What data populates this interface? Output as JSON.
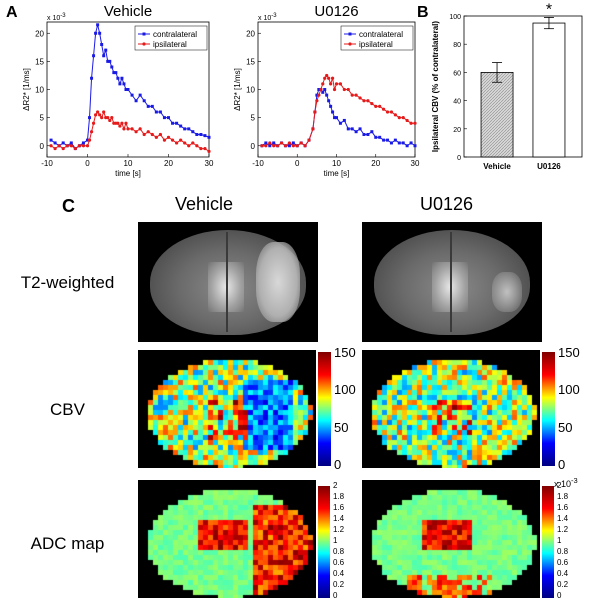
{
  "panel_labels": {
    "a": "A",
    "b": "B",
    "c": "C"
  },
  "chart_data": [
    {
      "type": "line",
      "title": "Vehicle",
      "xlabel": "time [s]",
      "ylabel": "ΔR2* [1/ms]",
      "exponent": "x 10",
      "exponent_power": "-3",
      "xlim": [
        -10,
        30
      ],
      "ylim": [
        -2,
        22
      ],
      "xticks": [
        "-10",
        "0",
        "10",
        "20",
        "30"
      ],
      "yticks": [
        "0",
        "5",
        "10",
        "15",
        "20"
      ],
      "series": [
        {
          "name": "contralateral",
          "color": "#1a1ae6",
          "x": [
            -9,
            -8,
            -7,
            -6,
            -5,
            -4,
            -3,
            -2,
            -1,
            0,
            0.5,
            1,
            1.5,
            2,
            2.5,
            3,
            3.5,
            4,
            4.5,
            5,
            5.5,
            6,
            6.5,
            7,
            7.5,
            8,
            8.5,
            9,
            9.5,
            10,
            11,
            12,
            13,
            14,
            15,
            16,
            17,
            18,
            19,
            20,
            21,
            22,
            23,
            24,
            25,
            26,
            27,
            28,
            29,
            30
          ],
          "y": [
            1,
            0.5,
            0,
            0.5,
            0,
            0.5,
            -0.5,
            0,
            0.5,
            1,
            5,
            12,
            16,
            20,
            21.5,
            20,
            18,
            16,
            17,
            15,
            15,
            14,
            13,
            13,
            12,
            11,
            12,
            11,
            10,
            10,
            9,
            8,
            9,
            8,
            7,
            7,
            6,
            6,
            5,
            5,
            4,
            4,
            3.5,
            3,
            3,
            2.5,
            2,
            2,
            1.8,
            1.5
          ]
        },
        {
          "name": "ipsilateral",
          "color": "#e61a1a",
          "x": [
            -9,
            -8,
            -7,
            -6,
            -5,
            -4,
            -3,
            -2,
            -1,
            0,
            0.5,
            1,
            1.5,
            2,
            2.5,
            3,
            3.5,
            4,
            4.5,
            5,
            5.5,
            6,
            6.5,
            7,
            7.5,
            8,
            8.5,
            9,
            9.5,
            10,
            11,
            12,
            13,
            14,
            15,
            16,
            17,
            18,
            19,
            20,
            21,
            22,
            23,
            24,
            25,
            26,
            27,
            28,
            29,
            30
          ],
          "y": [
            0,
            -0.5,
            0,
            -0.5,
            0,
            0,
            -0.5,
            0,
            0,
            0,
            1,
            2.5,
            4,
            5.5,
            6,
            5.5,
            5,
            6,
            5,
            5,
            4.5,
            5,
            4,
            4,
            4,
            3.5,
            4,
            3,
            4,
            3,
            3,
            2.5,
            3,
            2,
            2.5,
            2,
            1.5,
            2,
            1,
            1.5,
            1,
            0.5,
            1,
            0.5,
            0,
            0.5,
            0,
            -0.5,
            -0.5,
            -1
          ]
        }
      ]
    },
    {
      "type": "line",
      "title": "U0126",
      "xlabel": "time [s]",
      "ylabel": "ΔR2* [1/ms]",
      "exponent": "x 10",
      "exponent_power": "-3",
      "xlim": [
        -10,
        30
      ],
      "ylim": [
        -2,
        22
      ],
      "xticks": [
        "-10",
        "0",
        "10",
        "20",
        "30"
      ],
      "yticks": [
        "0",
        "5",
        "10",
        "15",
        "20"
      ],
      "series": [
        {
          "name": "contralateral",
          "color": "#1a1ae6",
          "x": [
            -9,
            -8,
            -7,
            -6,
            -5,
            -4,
            -3,
            -2,
            -1,
            0,
            1,
            2,
            3,
            4,
            4.5,
            5,
            5.5,
            6,
            6.5,
            7,
            7.5,
            8,
            8.5,
            9,
            9.5,
            10,
            11,
            12,
            13,
            14,
            15,
            16,
            17,
            18,
            19,
            20,
            21,
            22,
            23,
            24,
            25,
            26,
            27,
            28,
            29,
            30
          ],
          "y": [
            0,
            0.5,
            0,
            0.5,
            0,
            0.5,
            0,
            0,
            0.5,
            0,
            0.5,
            0,
            1,
            3,
            6,
            9,
            10,
            10,
            9.5,
            10,
            9,
            8,
            7,
            6,
            5,
            5,
            4,
            4.5,
            3,
            3,
            2.5,
            3,
            2,
            2,
            2.5,
            1.5,
            1.5,
            1,
            1,
            0.5,
            1,
            0.5,
            0.5,
            0,
            0.5,
            0
          ]
        },
        {
          "name": "ipsilateral",
          "color": "#e61a1a",
          "x": [
            -9,
            -8,
            -7,
            -6,
            -5,
            -4,
            -3,
            -2,
            -1,
            0,
            1,
            2,
            3,
            4,
            4.5,
            5,
            5.5,
            6,
            6.5,
            7,
            7.5,
            8,
            8.5,
            9,
            9.5,
            10,
            11,
            12,
            13,
            14,
            15,
            16,
            17,
            18,
            19,
            20,
            21,
            22,
            23,
            24,
            25,
            26,
            27,
            28,
            29,
            30
          ],
          "y": [
            0,
            0,
            0.5,
            0,
            0,
            0.5,
            0,
            0.5,
            0,
            0,
            0.5,
            0,
            1,
            3,
            6,
            8,
            9,
            10,
            11,
            12,
            12.5,
            12,
            11,
            12,
            10,
            11,
            11,
            10,
            10,
            9,
            9,
            8.5,
            8,
            8,
            7.5,
            7,
            7,
            6.5,
            6,
            6,
            5.5,
            5,
            5,
            4.5,
            4,
            4
          ]
        }
      ]
    },
    {
      "type": "bar",
      "title": "",
      "categories": [
        "Vehicle",
        "U0126"
      ],
      "values": [
        60,
        95
      ],
      "errors": [
        7,
        4
      ],
      "ylabel": "Ipsilateral CBV (% of contralateral)",
      "ylim": [
        0,
        100
      ],
      "yticks": [
        "0",
        "20",
        "40",
        "60",
        "80",
        "100"
      ],
      "annotation": "*"
    }
  ],
  "panel_c": {
    "columns": [
      "Vehicle",
      "U0126"
    ],
    "rows": [
      "T2-weighted",
      "CBV",
      "ADC map"
    ],
    "cbv_colorbar_ticks": [
      "150",
      "100",
      "50",
      "0"
    ],
    "adc_colorbar_ticks": [
      "2",
      "1.8",
      "1.6",
      "1.4",
      "1.2",
      "1",
      "0.8",
      "0.6",
      "0.4",
      "0.2",
      "0"
    ],
    "adc_exponent": "x 10",
    "adc_exponent_power": "-3"
  }
}
